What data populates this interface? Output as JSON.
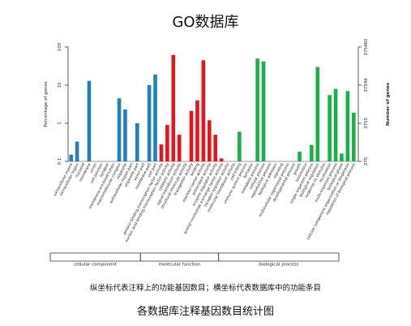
{
  "title": "GO数据库",
  "caption_note": "纵坐标代表注释上的功能基因数目；横坐标代表数据库中的功能条目",
  "caption_main": "各数据库注释基因数目统计图",
  "chart_data": {
    "type": "bar",
    "scale": "log",
    "ylabel_left": "Percentage of genes",
    "ylabel_right": "Number of genes",
    "ylim_percent": [
      0.1,
      100
    ],
    "y_ticks_left": [
      "100",
      "10",
      "1",
      "0.1"
    ],
    "y_ticks_right": [
      "375460",
      "37546",
      "3755",
      "375"
    ],
    "grid": false,
    "colors": {
      "cellular component": "#1f7fbf",
      "molecular function": "#e8131b",
      "biological process": "#19b04a"
    },
    "groups": [
      "cellular component",
      "molecular function",
      "biological process"
    ],
    "categories": [
      {
        "label": "extracellular matrix",
        "group": "cellular component",
        "value": 0.15
      },
      {
        "label": "extracellular region",
        "group": "cellular component",
        "value": 0.33
      },
      {
        "label": "nucleoid",
        "group": "cellular component",
        "value": null
      },
      {
        "label": "membrane",
        "group": "cellular component",
        "value": 13
      },
      {
        "label": "virion",
        "group": "cellular component",
        "value": null
      },
      {
        "label": "cell junction",
        "group": "cellular component",
        "value": null
      },
      {
        "label": "synapse",
        "group": "cellular component",
        "value": null
      },
      {
        "label": "membrane-enclosed lumen",
        "group": "cellular component",
        "value": null
      },
      {
        "label": "macromolecular complex",
        "group": "cellular component",
        "value": 4.5
      },
      {
        "label": "organelle",
        "group": "cellular component",
        "value": 2.3
      },
      {
        "label": "extracellular region part",
        "group": "cellular component",
        "value": null
      },
      {
        "label": "organelle part",
        "group": "cellular component",
        "value": 1.0
      },
      {
        "label": "virion part",
        "group": "cellular component",
        "value": null
      },
      {
        "label": "membrane part",
        "group": "cellular component",
        "value": 10
      },
      {
        "label": "cell part",
        "group": "cellular component",
        "value": 19
      },
      {
        "label": "protein binding transcription factor activity",
        "group": "molecular function",
        "value": 0.28
      },
      {
        "label": "nucleic acid binding transcription factor activity",
        "group": "molecular function",
        "value": 0.9
      },
      {
        "label": "catalytic activity",
        "group": "molecular function",
        "value": 62
      },
      {
        "label": "signal transducer activity",
        "group": "molecular function",
        "value": 0.5
      },
      {
        "label": "structural molecule activity",
        "group": "molecular function",
        "value": null
      },
      {
        "label": "transporter activity",
        "group": "molecular function",
        "value": 2.1
      },
      {
        "label": "binding",
        "group": "molecular function",
        "value": 4.0
      },
      {
        "label": "electron carrier activity",
        "group": "molecular function",
        "value": 45
      },
      {
        "label": "antioxidant activity",
        "group": "molecular function",
        "value": 1.2
      },
      {
        "label": "enzyme regulator activity",
        "group": "molecular function",
        "value": 0.5
      },
      {
        "label": "guanyl-nucleotide exchange factor activity",
        "group": "molecular function",
        "value": 0.12
      },
      {
        "label": "receptor regulator activity",
        "group": "molecular function",
        "value": null
      },
      {
        "label": "molecular transducer activity",
        "group": "molecular function",
        "value": null
      },
      {
        "label": "cell killing",
        "group": "biological process",
        "value": 0.6
      },
      {
        "label": "immune system process",
        "group": "biological process",
        "value": null
      },
      {
        "label": "behavior",
        "group": "biological process",
        "value": null
      },
      {
        "label": "metabolic process",
        "group": "biological process",
        "value": 50
      },
      {
        "label": "cellular process",
        "group": "biological process",
        "value": 42
      },
      {
        "label": "reproductive process",
        "group": "biological process",
        "value": null
      },
      {
        "label": "biological adhesion",
        "group": "biological process",
        "value": null
      },
      {
        "label": "signaling",
        "group": "biological process",
        "value": null
      },
      {
        "label": "multicellular organismal process",
        "group": "biological process",
        "value": null
      },
      {
        "label": "developmental process",
        "group": "biological process",
        "value": null
      },
      {
        "label": "growth",
        "group": "biological process",
        "value": 0.18
      },
      {
        "label": "locomotion",
        "group": "biological process",
        "value": null
      },
      {
        "label": "single-organism process",
        "group": "biological process",
        "value": 0.27
      },
      {
        "label": "biological regulation",
        "group": "biological process",
        "value": 30
      },
      {
        "label": "response to stimulus",
        "group": "biological process",
        "value": null
      },
      {
        "label": "localization",
        "group": "biological process",
        "value": 5.5
      },
      {
        "label": "multi-organism process",
        "group": "biological process",
        "value": 8
      },
      {
        "label": "biological phase",
        "group": "biological process",
        "value": 0.16
      },
      {
        "label": "cellular component organization or biogenesis",
        "group": "biological process",
        "value": 7
      },
      {
        "label": "regulation of biological process",
        "group": "biological process",
        "value": 1.9
      }
    ]
  }
}
